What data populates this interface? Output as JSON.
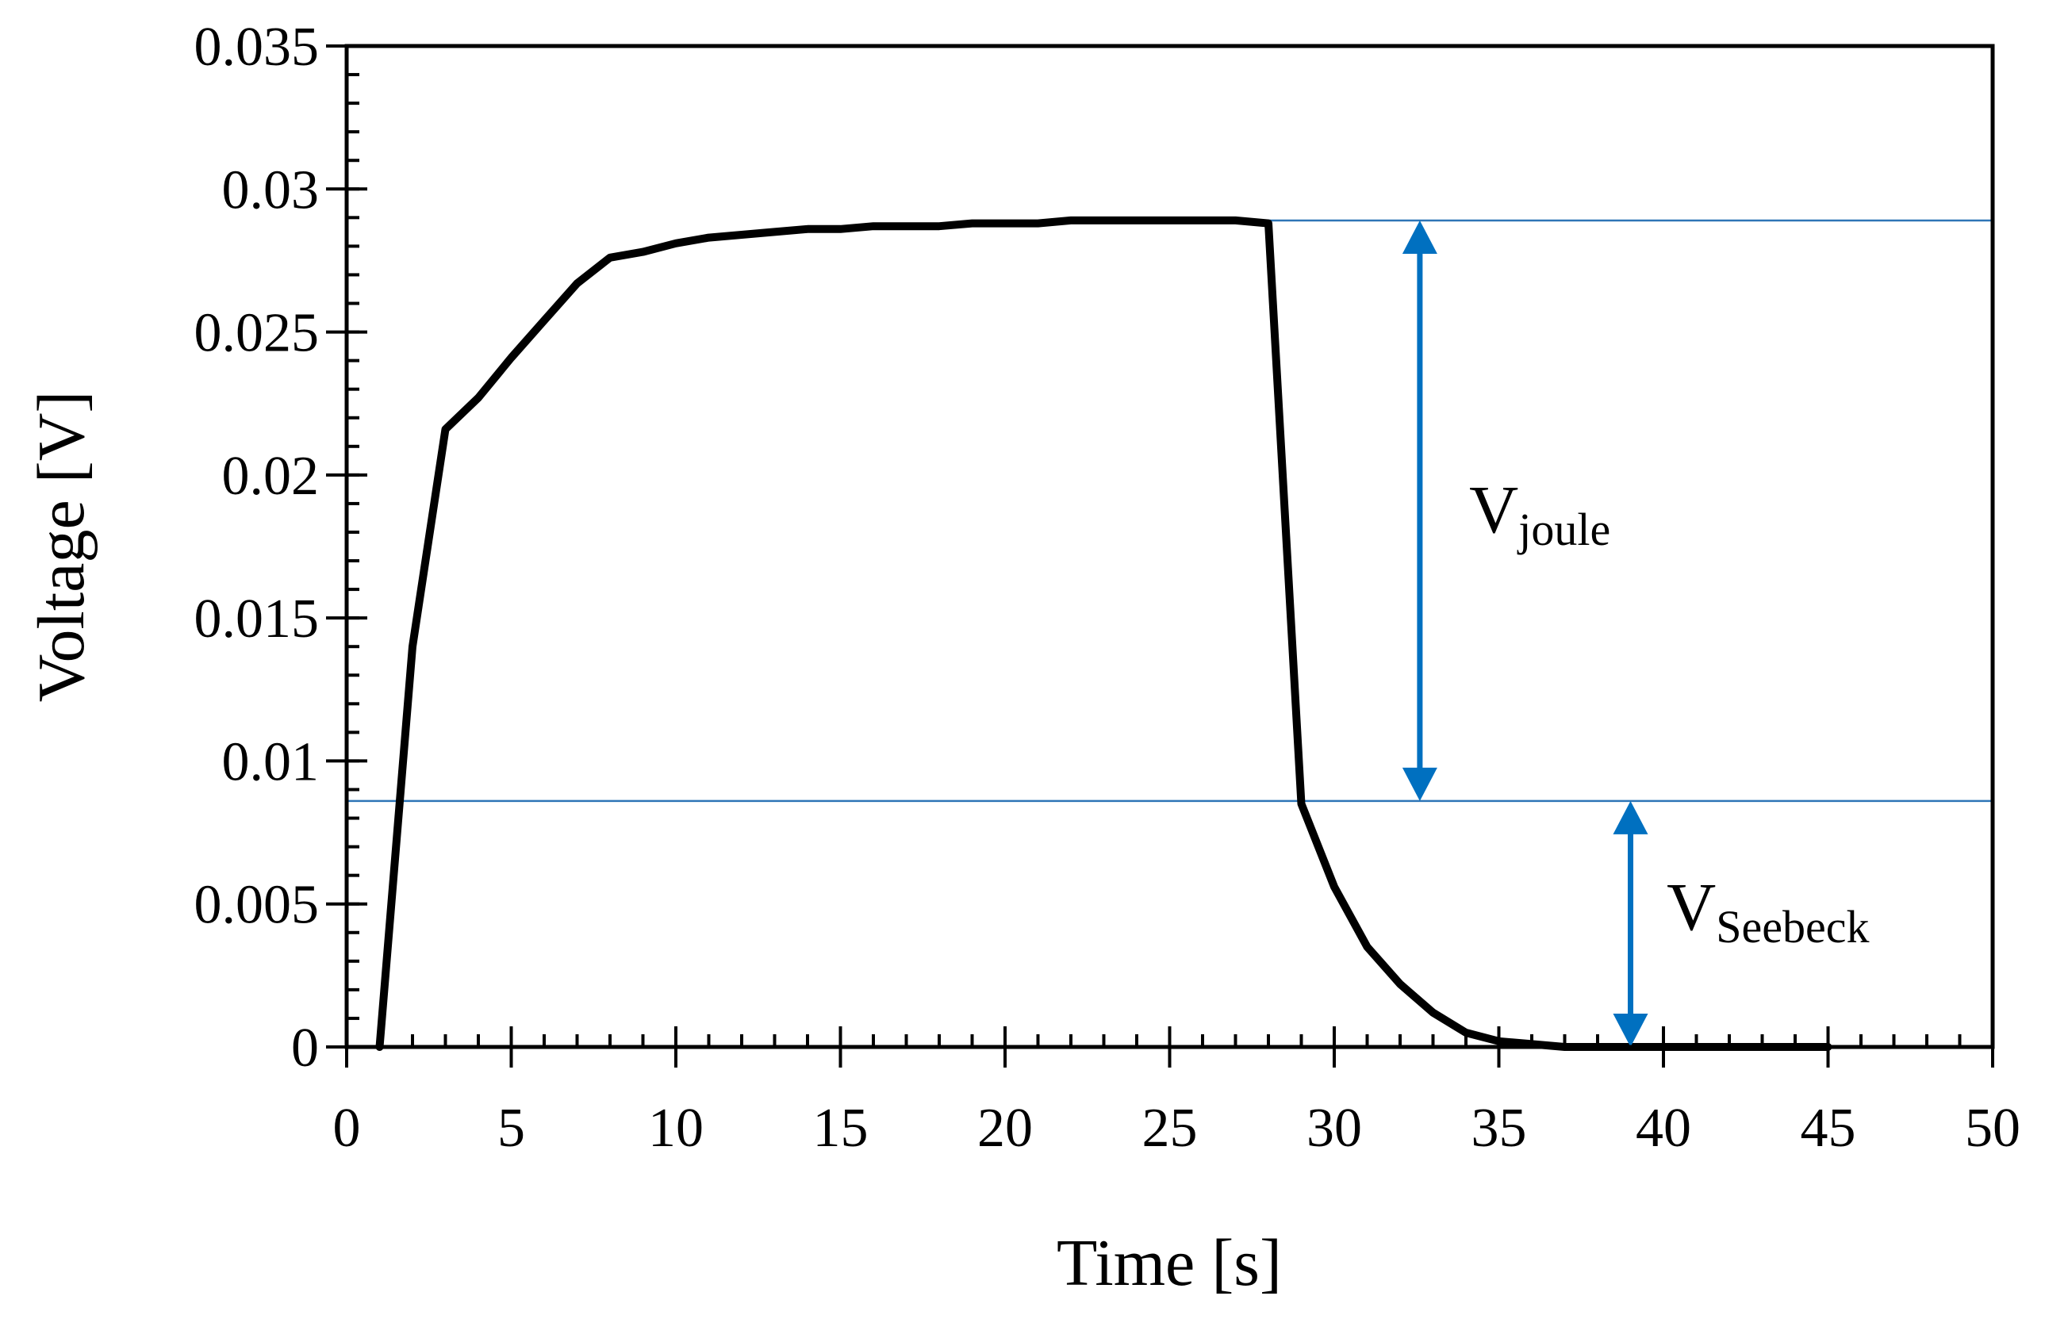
{
  "chart_data": {
    "type": "line",
    "title": "",
    "xlabel": "Time [s]",
    "ylabel": "Voltage [V]",
    "xlim": [
      0,
      50
    ],
    "ylim": [
      0,
      0.035
    ],
    "x_ticks": [
      0,
      5,
      10,
      15,
      20,
      25,
      30,
      35,
      40,
      45,
      50
    ],
    "y_ticks": [
      0,
      0.005,
      0.01,
      0.015,
      0.02,
      0.025,
      0.03,
      0.035
    ],
    "x_tick_labels": [
      "0",
      "5",
      "10",
      "15",
      "20",
      "25",
      "30",
      "35",
      "40",
      "45",
      "50"
    ],
    "y_tick_labels": [
      "0",
      "0.005",
      "0.01",
      "0.015",
      "0.02",
      "0.025",
      "0.03",
      "0.035"
    ],
    "x_minor_step": 1,
    "y_minor_step": 0.001,
    "grid": false,
    "series": [
      {
        "name": "Voltage",
        "color": "#000000",
        "x": [
          1,
          2,
          3,
          4,
          5,
          6,
          7,
          8,
          9,
          10,
          11,
          12,
          13,
          14,
          15,
          16,
          17,
          18,
          19,
          20,
          21,
          22,
          23,
          24,
          25,
          26,
          27,
          28,
          29,
          30,
          31,
          32,
          33,
          34,
          35,
          36,
          37,
          38,
          39,
          40,
          41,
          42,
          43,
          44,
          45
        ],
        "values": [
          0,
          0.014,
          0.0216,
          0.0227,
          0.0241,
          0.0254,
          0.0267,
          0.0276,
          0.0278,
          0.0281,
          0.0283,
          0.0284,
          0.0285,
          0.0286,
          0.0286,
          0.0287,
          0.0287,
          0.0287,
          0.0288,
          0.0288,
          0.0288,
          0.0289,
          0.0289,
          0.0289,
          0.0289,
          0.0289,
          0.0289,
          0.0288,
          0.0085,
          0.0056,
          0.0035,
          0.0022,
          0.0012,
          0.0005,
          0.0002,
          0.0001,
          0.0,
          0.0,
          0.0,
          0.0,
          0.0,
          0.0,
          0.0,
          0.0,
          0.0
        ]
      }
    ],
    "reference_lines": [
      {
        "name": "upper-level",
        "y": 0.0289,
        "x_from": 26.0,
        "x_to": 50,
        "color": "#2E75B6"
      },
      {
        "name": "lower-level",
        "y": 0.0086,
        "x_from": 0,
        "x_to": 50,
        "color": "#2E75B6"
      }
    ],
    "annotations": [
      {
        "name": "v-joule",
        "x": 32.6,
        "y_from": 0.0289,
        "y_to": 0.0086,
        "label_main": "V",
        "label_sub": "joule",
        "label_x": 34.1,
        "label_y": 0.018,
        "color": "#0070C0"
      },
      {
        "name": "v-seebeck",
        "x": 39.0,
        "y_from": 0.0086,
        "y_to": 0.0,
        "label_main": "V",
        "label_sub": "Seebeck",
        "label_x": 40.1,
        "label_y": 0.0041,
        "color": "#0070C0"
      }
    ]
  }
}
